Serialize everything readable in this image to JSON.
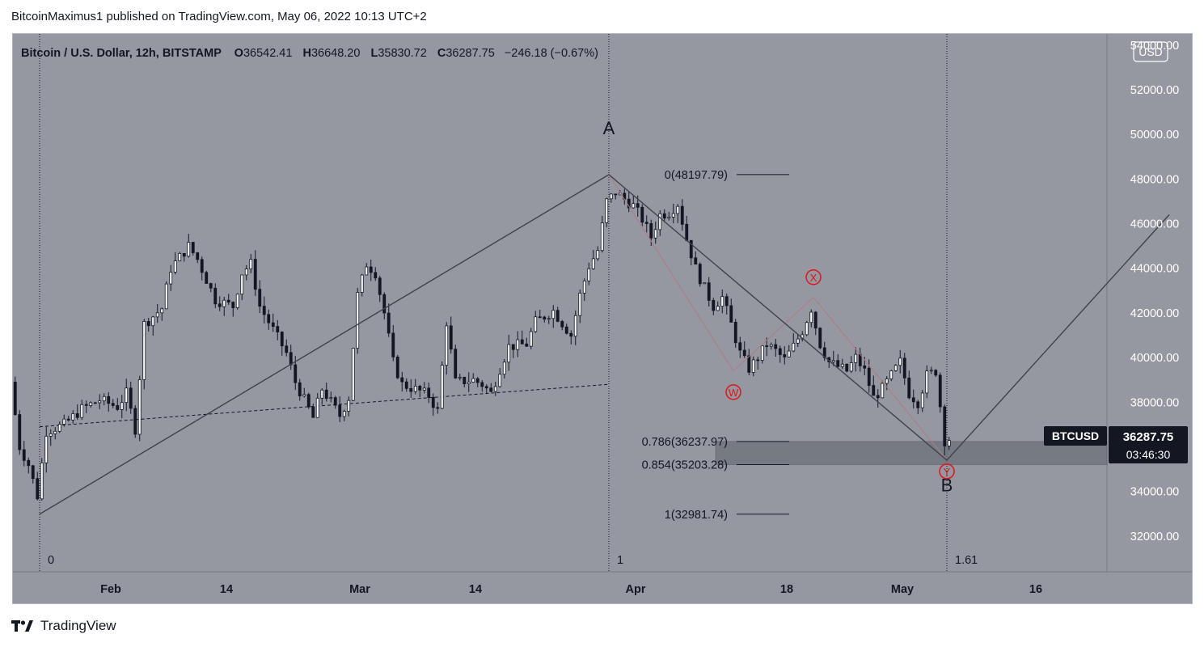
{
  "header": {
    "caption": "BitcoinMaximus1 published on TradingView.com, May 06, 2022 10:13 UTC+2"
  },
  "legend": {
    "symbol": "Bitcoin / U.S. Dollar, 12h, BITSTAMP",
    "o_label": "O",
    "o_value": "36542.41",
    "h_label": "H",
    "h_value": "36648.20",
    "l_label": "L",
    "l_value": "35830.72",
    "c_label": "C",
    "c_value": "36287.75",
    "change": "−246.18 (−0.67%)"
  },
  "currency_badge": "USD",
  "price_badge": {
    "ticker": "BTCUSD",
    "price": "36287.75",
    "countdown": "03:46:30"
  },
  "footer": {
    "brand": "TradingView"
  },
  "colors": {
    "plot_bg": "#9598a1",
    "candle": "#131722",
    "accent": "#e0151a",
    "zone": "#6c707a"
  },
  "chart_data": {
    "type": "candlestick",
    "y_axis": {
      "min": 30400,
      "max": 54500,
      "ticks": [
        54000,
        52000,
        50000,
        48000,
        46000,
        44000,
        42000,
        40000,
        38000,
        36000,
        34000,
        32000
      ],
      "tick_labels": [
        "54000.00",
        "52000.00",
        "50000.00",
        "48000.00",
        "46000.00",
        "44000.00",
        "42000.00",
        "40000.00",
        "38000.00",
        "36000.00",
        "34000.00",
        "32000.00"
      ]
    },
    "x_axis": {
      "start": "2022-01-21",
      "end": "2022-05-24",
      "ticks": [
        {
          "date": "2022-02-01",
          "label": "Feb"
        },
        {
          "date": "2022-02-14",
          "label": "14"
        },
        {
          "date": "2022-03-01",
          "label": "Mar"
        },
        {
          "date": "2022-03-14",
          "label": "14"
        },
        {
          "date": "2022-04-01",
          "label": "Apr"
        },
        {
          "date": "2022-04-18",
          "label": "18"
        },
        {
          "date": "2022-05-01",
          "label": "May"
        },
        {
          "date": "2022-05-16",
          "label": "16"
        }
      ]
    },
    "price_path": [
      [
        "2022-01-21",
        38900
      ],
      [
        "2022-01-22",
        36000
      ],
      [
        "2022-01-23",
        35200
      ],
      [
        "2022-01-24",
        33800
      ],
      [
        "2022-01-25",
        36700
      ],
      [
        "2022-01-27",
        37000
      ],
      [
        "2022-01-29",
        37700
      ],
      [
        "2022-01-31",
        38100
      ],
      [
        "2022-02-02",
        37800
      ],
      [
        "2022-02-03",
        38400
      ],
      [
        "2022-02-04",
        36800
      ],
      [
        "2022-02-05",
        41500
      ],
      [
        "2022-02-07",
        42200
      ],
      [
        "2022-02-08",
        44000
      ],
      [
        "2022-02-10",
        45000
      ],
      [
        "2022-02-11",
        44400
      ],
      [
        "2022-02-13",
        42600
      ],
      [
        "2022-02-15",
        42300
      ],
      [
        "2022-02-16",
        43800
      ],
      [
        "2022-02-17",
        44200
      ],
      [
        "2022-02-18",
        42300
      ],
      [
        "2022-02-20",
        40900
      ],
      [
        "2022-02-21",
        40200
      ],
      [
        "2022-02-22",
        38900
      ],
      [
        "2022-02-23",
        38100
      ],
      [
        "2022-02-24",
        37300
      ],
      [
        "2022-02-25",
        38600
      ],
      [
        "2022-02-27",
        37400
      ],
      [
        "2022-02-28",
        38200
      ],
      [
        "2022-03-01",
        42800
      ],
      [
        "2022-03-02",
        44200
      ],
      [
        "2022-03-03",
        43800
      ],
      [
        "2022-03-04",
        42000
      ],
      [
        "2022-03-05",
        39800
      ],
      [
        "2022-03-06",
        38800
      ],
      [
        "2022-03-08",
        38500
      ],
      [
        "2022-03-09",
        38300
      ],
      [
        "2022-03-10",
        37600
      ],
      [
        "2022-03-11",
        41600
      ],
      [
        "2022-03-12",
        38900
      ],
      [
        "2022-03-14",
        39000
      ],
      [
        "2022-03-15",
        38800
      ],
      [
        "2022-03-16",
        38400
      ],
      [
        "2022-03-17",
        39500
      ],
      [
        "2022-03-18",
        40500
      ],
      [
        "2022-03-20",
        40600
      ],
      [
        "2022-03-21",
        41600
      ],
      [
        "2022-03-23",
        42100
      ],
      [
        "2022-03-25",
        41000
      ],
      [
        "2022-03-26",
        42800
      ],
      [
        "2022-03-27",
        44100
      ],
      [
        "2022-03-28",
        44800
      ],
      [
        "2022-03-29",
        47000
      ],
      [
        "2022-03-30",
        47400
      ],
      [
        "2022-03-31",
        47100
      ],
      [
        "2022-04-01",
        46800
      ],
      [
        "2022-04-02",
        46200
      ],
      [
        "2022-04-03",
        45400
      ],
      [
        "2022-04-04",
        46400
      ],
      [
        "2022-04-05",
        46500
      ],
      [
        "2022-04-06",
        46900
      ],
      [
        "2022-04-07",
        45300
      ],
      [
        "2022-04-08",
        44000
      ],
      [
        "2022-04-09",
        43100
      ],
      [
        "2022-04-10",
        42300
      ],
      [
        "2022-04-11",
        42700
      ],
      [
        "2022-04-12",
        41500
      ],
      [
        "2022-04-13",
        40200
      ],
      [
        "2022-04-14",
        39500
      ],
      [
        "2022-04-15",
        40000
      ],
      [
        "2022-04-16",
        40600
      ],
      [
        "2022-04-17",
        40300
      ],
      [
        "2022-04-18",
        39900
      ],
      [
        "2022-04-19",
        40500
      ],
      [
        "2022-04-20",
        41200
      ],
      [
        "2022-04-21",
        42200
      ],
      [
        "2022-04-22",
        40600
      ],
      [
        "2022-04-23",
        39800
      ],
      [
        "2022-04-24",
        39600
      ],
      [
        "2022-04-25",
        39400
      ],
      [
        "2022-04-26",
        40000
      ],
      [
        "2022-04-27",
        39400
      ],
      [
        "2022-04-28",
        38200
      ],
      [
        "2022-04-29",
        38600
      ],
      [
        "2022-04-30",
        39200
      ],
      [
        "2022-05-01",
        39800
      ],
      [
        "2022-05-02",
        38400
      ],
      [
        "2022-05-03",
        38000
      ],
      [
        "2022-05-04",
        39200
      ],
      [
        "2022-05-05",
        39400
      ],
      [
        "2022-05-06",
        36287
      ]
    ],
    "annotations": {
      "wave_path": [
        {
          "date": "2022-01-24",
          "price": 32981.74
        },
        {
          "date": "2022-03-29",
          "price": 48197.79
        },
        {
          "date": "2022-05-06",
          "price": 35400
        },
        {
          "date": "2022-05-31",
          "price": 46400
        }
      ],
      "inner_path": [
        {
          "date": "2022-03-29",
          "price": 48197.79
        },
        {
          "date": "2022-04-12",
          "price": 39400
        },
        {
          "date": "2022-04-21",
          "price": 42700
        },
        {
          "date": "2022-05-06",
          "price": 35400
        }
      ],
      "trendline": [
        {
          "date": "2022-01-24",
          "price": 36900
        },
        {
          "date": "2022-03-29",
          "price": 38800
        }
      ],
      "wave_labels": [
        {
          "text": "A",
          "date": "2022-03-29",
          "price": 50000
        },
        {
          "text": "B",
          "date": "2022-05-06",
          "price": 34000
        }
      ],
      "circled_labels": [
        {
          "text": "W",
          "date": "2022-04-12",
          "price": 38450
        },
        {
          "text": "X",
          "date": "2022-04-21",
          "price": 43600
        },
        {
          "text": "Y",
          "date": "2022-05-06",
          "price": 34900
        }
      ],
      "fib_levels": [
        {
          "ratio": "0",
          "price": 48197.79,
          "label": "0(48197.79)"
        },
        {
          "ratio": "0.786",
          "price": 36237.97,
          "label": "0.786(36237.97)"
        },
        {
          "ratio": "0.854",
          "price": 35203.28,
          "label": "0.854(35203.28)"
        },
        {
          "ratio": "1",
          "price": 32981.74,
          "label": "1(32981.74)"
        }
      ],
      "fib_zone": {
        "from_date": "2022-04-10",
        "to_date": "2022-05-24",
        "price_top": 36237.97,
        "price_bottom": 35203.28
      },
      "time_markers": [
        {
          "date": "2022-01-24",
          "label": "0"
        },
        {
          "date": "2022-03-29",
          "label": "1"
        },
        {
          "date": "2022-05-06",
          "label": "1.61"
        }
      ]
    }
  }
}
